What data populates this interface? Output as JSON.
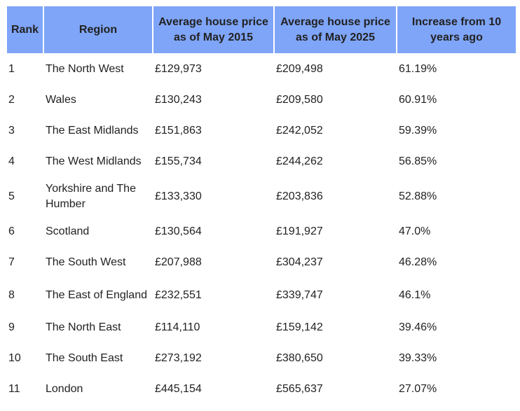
{
  "headers": [
    "Rank",
    "Region",
    "Average house price as of May 2015",
    "Average house price as of May 2025",
    "Increase from 10 years ago"
  ],
  "rows": [
    [
      "1",
      "The North West",
      "£129,973",
      "£209,498",
      "61.19%"
    ],
    [
      "2",
      "Wales",
      "£130,243",
      "£209,580",
      "60.91%"
    ],
    [
      "3",
      "The East Midlands",
      "£151,863",
      "£242,052",
      "59.39%"
    ],
    [
      "4",
      "The West Midlands",
      "£155,734",
      "£244,262",
      "56.85%"
    ],
    [
      "5",
      "Yorkshire and The Humber",
      "£133,330",
      "£203,836",
      "52.88%"
    ],
    [
      "6",
      "Scotland",
      "£130,564",
      "£191,927",
      "47.0%"
    ],
    [
      "7",
      "The South West",
      "£207,988",
      "£304,237",
      "46.28%"
    ],
    [
      "8",
      "The East of England",
      "£232,551",
      "£339,747",
      "46.1%"
    ],
    [
      "9",
      "The North East",
      "£114,110",
      "£159,142",
      "39.46%"
    ],
    [
      "10",
      "The South East",
      "£273,192",
      "£380,650",
      "39.33%"
    ],
    [
      "11",
      "London",
      "£445,154",
      "£565,637",
      "27.07%"
    ]
  ],
  "colors": {
    "header_bg": "#7fa5f8"
  }
}
